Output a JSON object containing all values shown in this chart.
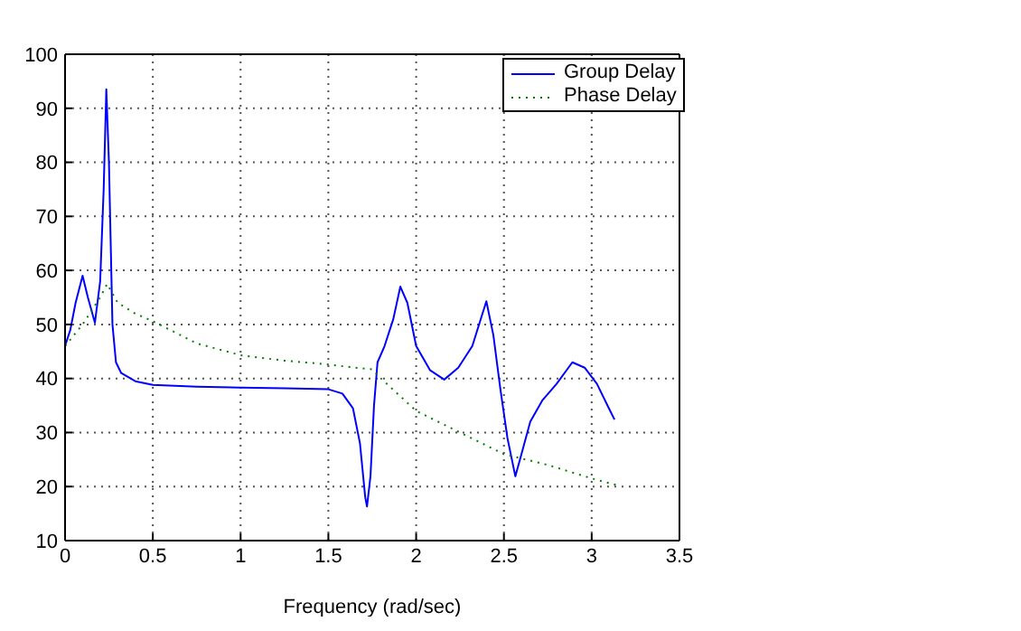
{
  "chart_data": {
    "type": "line",
    "xlabel": "Frequency (rad/sec)",
    "xlim": [
      0,
      3.5
    ],
    "xticks": [
      0,
      0.5,
      1,
      1.5,
      2,
      2.5,
      3,
      3.5
    ],
    "ylim": [
      10,
      100
    ],
    "yticks": [
      10,
      20,
      30,
      40,
      50,
      60,
      70,
      80,
      90,
      100
    ],
    "grid": true,
    "legend": "top right",
    "marker": "none",
    "series": [
      {
        "name": "Group Delay",
        "color": "#0000ff",
        "line_style": "solid",
        "x": [
          0,
          0.03,
          0.06,
          0.1,
          0.13,
          0.17,
          0.2,
          0.22,
          0.235,
          0.25,
          0.27,
          0.29,
          0.32,
          0.4,
          0.5,
          0.75,
          1.0,
          1.25,
          1.5,
          1.58,
          1.64,
          1.68,
          1.71,
          1.72,
          1.74,
          1.76,
          1.78,
          1.82,
          1.87,
          1.91,
          1.95,
          2.0,
          2.08,
          2.16,
          2.24,
          2.32,
          2.4,
          2.44,
          2.48,
          2.52,
          2.565,
          2.6,
          2.65,
          2.72,
          2.8,
          2.89,
          2.96,
          3.03,
          3.09,
          3.13
        ],
        "values": [
          46,
          49,
          54,
          59,
          55,
          50.3,
          58,
          75,
          93.5,
          80,
          50,
          43,
          41,
          39.5,
          38.8,
          38.5,
          38.3,
          38.2,
          38,
          37.2,
          34.5,
          28,
          18,
          16.3,
          22,
          35,
          43,
          46,
          51,
          57,
          54,
          46,
          41.5,
          39.8,
          42,
          46,
          54.3,
          48,
          38,
          29,
          21.9,
          26,
          32,
          36,
          39,
          43,
          42,
          39,
          35,
          32.4
        ]
      },
      {
        "name": "Phase Delay",
        "color": "#008000",
        "line_style": "dotted",
        "x": [
          0,
          0.1,
          0.2,
          0.24,
          0.3,
          0.4,
          0.5,
          0.75,
          1.0,
          1.25,
          1.5,
          1.65,
          1.75,
          1.8,
          1.9,
          2.0,
          2.25,
          2.5,
          2.75,
          3.0,
          3.14
        ],
        "values": [
          46,
          50,
          55,
          57.5,
          54,
          52,
          50.6,
          46.5,
          44.3,
          43.3,
          42.6,
          42,
          41.7,
          40,
          37,
          34,
          30,
          26,
          24,
          21.5,
          20.3
        ]
      }
    ]
  }
}
